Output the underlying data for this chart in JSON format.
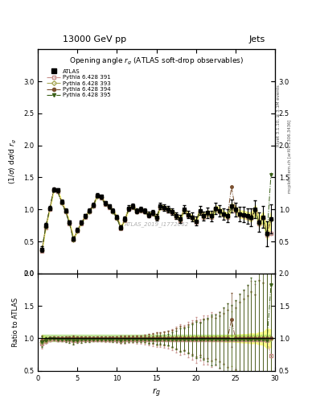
{
  "title_top": "13000 GeV pp",
  "title_right": "Jets",
  "plot_title": "Opening angle $r_g$ (ATLAS soft-drop observables)",
  "xlabel": "$r_g$",
  "ylabel_main": "$(1/\\sigma)$ d$\\sigma$/d $r_g$",
  "ylabel_ratio": "Ratio to ATLAS",
  "right_label_main": "Rivet 3.1.10, ≥ 3.1M events",
  "right_label_bot": "mcplots.cern.ch [arXiv:1306.3436]",
  "watermark": "ATLAS_2019_I1772062",
  "xlim": [
    0,
    30
  ],
  "ylim_main": [
    0,
    3.5
  ],
  "ylim_ratio": [
    0.5,
    2.0
  ],
  "x": [
    0.5,
    1.0,
    1.5,
    2.0,
    2.5,
    3.0,
    3.5,
    4.0,
    4.5,
    5.0,
    5.5,
    6.0,
    6.5,
    7.0,
    7.5,
    8.0,
    8.5,
    9.0,
    9.5,
    10.0,
    10.5,
    11.0,
    11.5,
    12.0,
    12.5,
    13.0,
    13.5,
    14.0,
    14.5,
    15.0,
    15.5,
    16.0,
    16.5,
    17.0,
    17.5,
    18.0,
    18.5,
    19.0,
    19.5,
    20.0,
    20.5,
    21.0,
    21.5,
    22.0,
    22.5,
    23.0,
    23.5,
    24.0,
    24.5,
    25.0,
    25.5,
    26.0,
    26.5,
    27.0,
    27.5,
    28.0,
    28.5,
    29.0,
    29.5
  ],
  "atlas_y": [
    0.38,
    0.75,
    1.02,
    1.31,
    1.3,
    1.12,
    0.98,
    0.8,
    0.54,
    0.68,
    0.8,
    0.9,
    0.98,
    1.07,
    1.22,
    1.2,
    1.1,
    1.05,
    0.98,
    0.88,
    0.72,
    0.85,
    1.02,
    1.05,
    0.98,
    1.0,
    0.98,
    0.92,
    0.95,
    0.88,
    1.05,
    1.03,
    1.0,
    0.97,
    0.9,
    0.85,
    1.0,
    0.92,
    0.88,
    0.82,
    0.98,
    0.9,
    0.95,
    0.9,
    1.02,
    0.98,
    0.93,
    0.9,
    1.05,
    1.0,
    0.93,
    0.92,
    0.9,
    0.88,
    1.0,
    0.8,
    0.88,
    0.62,
    0.85
  ],
  "atlas_yerr": [
    0.04,
    0.04,
    0.03,
    0.03,
    0.03,
    0.03,
    0.03,
    0.03,
    0.03,
    0.03,
    0.03,
    0.03,
    0.03,
    0.03,
    0.03,
    0.03,
    0.03,
    0.03,
    0.03,
    0.03,
    0.03,
    0.04,
    0.04,
    0.04,
    0.04,
    0.04,
    0.04,
    0.04,
    0.04,
    0.05,
    0.05,
    0.05,
    0.05,
    0.05,
    0.05,
    0.06,
    0.06,
    0.06,
    0.07,
    0.07,
    0.07,
    0.07,
    0.08,
    0.08,
    0.09,
    0.09,
    0.09,
    0.1,
    0.1,
    0.11,
    0.11,
    0.12,
    0.12,
    0.14,
    0.14,
    0.15,
    0.17,
    0.19,
    0.23
  ],
  "p391_y": [
    0.35,
    0.72,
    1.0,
    1.3,
    1.28,
    1.1,
    0.96,
    0.78,
    0.52,
    0.66,
    0.78,
    0.88,
    0.96,
    1.05,
    1.2,
    1.18,
    1.08,
    1.03,
    0.96,
    0.86,
    0.7,
    0.83,
    1.0,
    1.03,
    0.96,
    0.98,
    0.96,
    0.9,
    0.93,
    0.86,
    1.03,
    1.01,
    0.98,
    0.95,
    0.88,
    0.83,
    0.98,
    0.9,
    0.86,
    0.8,
    0.96,
    0.88,
    0.93,
    0.88,
    1.0,
    0.96,
    0.91,
    0.88,
    1.03,
    0.98,
    0.91,
    0.9,
    0.88,
    0.86,
    0.98,
    0.78,
    0.86,
    0.6,
    0.62
  ],
  "p393_y": [
    0.36,
    0.73,
    1.01,
    1.31,
    1.29,
    1.11,
    0.97,
    0.79,
    0.53,
    0.67,
    0.79,
    0.89,
    0.97,
    1.06,
    1.21,
    1.19,
    1.09,
    1.04,
    0.97,
    0.87,
    0.71,
    0.84,
    1.01,
    1.04,
    0.97,
    0.99,
    0.97,
    0.91,
    0.94,
    0.87,
    1.04,
    1.02,
    0.99,
    0.96,
    0.89,
    0.84,
    0.99,
    0.91,
    0.87,
    0.81,
    0.97,
    0.89,
    0.94,
    0.89,
    1.01,
    0.97,
    0.92,
    0.89,
    1.04,
    0.99,
    0.92,
    0.91,
    0.89,
    0.87,
    0.99,
    0.79,
    0.87,
    0.61,
    0.84
  ],
  "p394_y": [
    0.37,
    0.74,
    1.02,
    1.32,
    1.3,
    1.12,
    0.98,
    0.8,
    0.54,
    0.68,
    0.8,
    0.9,
    0.98,
    1.07,
    1.22,
    1.2,
    1.1,
    1.05,
    0.98,
    0.88,
    0.72,
    0.85,
    1.02,
    1.05,
    0.98,
    1.0,
    0.98,
    0.92,
    0.95,
    0.88,
    1.05,
    1.03,
    1.0,
    0.97,
    0.9,
    0.85,
    1.0,
    0.92,
    0.88,
    0.82,
    0.98,
    0.9,
    0.95,
    0.9,
    1.02,
    0.98,
    0.93,
    0.9,
    1.35,
    1.0,
    0.93,
    0.92,
    0.9,
    0.88,
    1.0,
    0.8,
    0.88,
    0.62,
    0.85
  ],
  "p395_y": [
    0.36,
    0.73,
    1.01,
    1.3,
    1.28,
    1.1,
    0.96,
    0.78,
    0.52,
    0.66,
    0.78,
    0.88,
    0.96,
    1.05,
    1.2,
    1.18,
    1.08,
    1.03,
    0.96,
    0.86,
    0.7,
    0.83,
    1.0,
    1.03,
    0.96,
    0.98,
    0.96,
    0.9,
    0.93,
    0.86,
    1.03,
    1.01,
    0.98,
    0.95,
    0.88,
    0.83,
    0.98,
    0.9,
    0.86,
    0.8,
    0.96,
    0.88,
    0.93,
    0.88,
    1.0,
    0.96,
    0.91,
    0.88,
    1.03,
    0.98,
    0.91,
    0.9,
    0.88,
    0.86,
    0.98,
    0.78,
    0.86,
    0.6,
    1.55
  ],
  "p391_yerr": [
    0.03,
    0.03,
    0.03,
    0.03,
    0.03,
    0.03,
    0.03,
    0.03,
    0.03,
    0.03,
    0.03,
    0.03,
    0.03,
    0.03,
    0.04,
    0.04,
    0.04,
    0.04,
    0.04,
    0.04,
    0.04,
    0.05,
    0.05,
    0.05,
    0.06,
    0.06,
    0.07,
    0.08,
    0.09,
    0.1,
    0.12,
    0.13,
    0.14,
    0.16,
    0.18,
    0.2,
    0.22,
    0.25,
    0.27,
    0.29,
    0.31,
    0.34,
    0.36,
    0.38,
    0.41,
    0.43,
    0.45,
    0.5,
    0.55,
    0.6,
    0.65,
    0.7,
    0.75,
    0.8,
    0.85,
    0.9,
    0.95,
    1.05,
    1.15
  ],
  "p395_yerr": [
    0.03,
    0.03,
    0.03,
    0.03,
    0.03,
    0.03,
    0.03,
    0.03,
    0.03,
    0.03,
    0.03,
    0.03,
    0.03,
    0.03,
    0.03,
    0.03,
    0.03,
    0.03,
    0.03,
    0.03,
    0.03,
    0.04,
    0.04,
    0.04,
    0.04,
    0.04,
    0.04,
    0.05,
    0.05,
    0.06,
    0.07,
    0.08,
    0.09,
    0.11,
    0.13,
    0.15,
    0.17,
    0.19,
    0.21,
    0.23,
    0.26,
    0.28,
    0.32,
    0.35,
    0.39,
    0.42,
    0.46,
    0.51,
    0.56,
    0.61,
    0.66,
    0.71,
    0.76,
    0.84,
    0.91,
    0.96,
    1.06,
    1.16,
    1.46
  ],
  "color_391": "#c8908c",
  "color_393": "#a8a858",
  "color_394": "#7a5030",
  "color_395": "#3a6018",
  "color_atlas": "#000000",
  "atlas_band_color": "#ffff80",
  "green_band_color": "#90d050",
  "bg_color": "#ffffff"
}
